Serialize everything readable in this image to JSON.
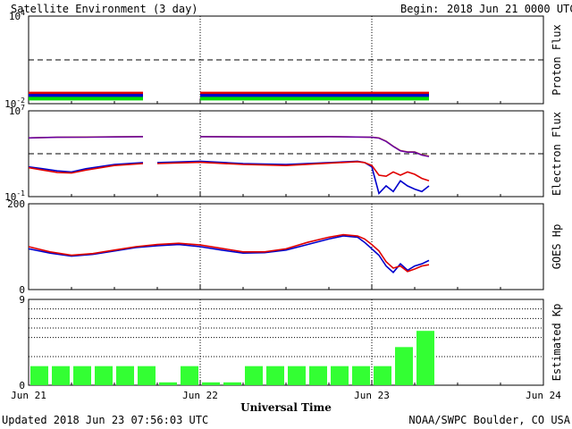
{
  "header": {
    "title": "Satellite Environment (3 day)",
    "begin_label": "Begin:",
    "begin_value": "2018 Jun 21 0000 UTC"
  },
  "footer": {
    "updated": "Updated 2018 Jun 23 07:56:03 UTC",
    "source": "NOAA/SWPC Boulder, CO USA"
  },
  "x_axis": {
    "title": "Universal Time",
    "ticks": [
      "Jun 21",
      "Jun 22",
      "Jun 23",
      "Jun 24"
    ],
    "range_hours": [
      0,
      72
    ],
    "data_end_hour": 56
  },
  "colors": {
    "red": "#e00000",
    "blue": "#0000cc",
    "green": "#00dd00",
    "orange": "#e8a020",
    "purple": "#6a00a0",
    "kp_bar": "#33ff33"
  },
  "chart_data": [
    {
      "type": "line",
      "ylabel": "Proton Flux",
      "yscale": "log",
      "ylim": [
        0.01,
        10000
      ],
      "yticks": [
        {
          "base": "10",
          "exp": "4"
        },
        {
          "base": "10",
          "exp": "-2"
        }
      ],
      "threshold": 10,
      "series": [
        {
          "color": "red",
          "x": [
            0,
            8,
            16,
            16.8,
            24,
            32,
            40,
            48,
            50,
            56
          ],
          "y": [
            0.05,
            0.05,
            0.05,
            null,
            0.05,
            0.05,
            0.05,
            0.05,
            0.05,
            0.05
          ]
        },
        {
          "color": "blue",
          "x": [
            0,
            8,
            16,
            16.8,
            24,
            32,
            40,
            48,
            50,
            56
          ],
          "y": [
            0.035,
            0.035,
            0.035,
            null,
            0.035,
            0.035,
            0.035,
            0.035,
            0.035,
            0.035
          ]
        },
        {
          "color": "green",
          "x": [
            0,
            8,
            16,
            16.8,
            24,
            32,
            40,
            48,
            50,
            56
          ],
          "y": [
            0.022,
            0.022,
            0.022,
            null,
            0.022,
            0.022,
            0.022,
            0.022,
            0.022,
            0.022
          ]
        }
      ]
    },
    {
      "type": "line",
      "ylabel": "Electron Flux",
      "yscale": "log",
      "ylim": [
        0.1,
        10000000
      ],
      "yticks": [
        {
          "base": "10",
          "exp": "7"
        },
        {
          "base": "10",
          "exp": "-1"
        }
      ],
      "threshold": 1000,
      "series": [
        {
          "color": "orange",
          "x": [
            0,
            4,
            8,
            12,
            16,
            16.8,
            24,
            30,
            36,
            42,
            48,
            49,
            50,
            51,
            52,
            53,
            54,
            55,
            56
          ],
          "y": [
            30000,
            35000,
            36000,
            38000,
            40000,
            null,
            40000,
            38000,
            38000,
            40000,
            35000,
            30000,
            15000,
            5000,
            2000,
            1500,
            1500,
            800,
            600
          ]
        },
        {
          "color": "purple",
          "x": [
            0,
            4,
            8,
            12,
            16,
            16.8,
            24,
            30,
            36,
            42,
            48,
            49,
            50,
            51,
            52,
            53,
            54,
            55,
            56
          ],
          "y": [
            30000,
            34000,
            35000,
            37000,
            39000,
            null,
            39000,
            37000,
            37000,
            39000,
            34000,
            29000,
            14000,
            4800,
            1900,
            1400,
            1400,
            750,
            550
          ]
        },
        {
          "color": "blue",
          "x": [
            0,
            2,
            4,
            6,
            8,
            12,
            16,
            16.8,
            18,
            24,
            30,
            36,
            42,
            46,
            47,
            48,
            49,
            50,
            51,
            52,
            53,
            54,
            55,
            56
          ],
          "y": [
            60,
            40,
            25,
            20,
            40,
            100,
            150,
            null,
            150,
            200,
            120,
            100,
            150,
            200,
            150,
            60,
            0.2,
            1,
            0.3,
            3,
            1,
            0.5,
            0.3,
            1
          ]
        },
        {
          "color": "red",
          "x": [
            0,
            2,
            4,
            6,
            8,
            12,
            16,
            16.8,
            18,
            24,
            30,
            36,
            42,
            46,
            47,
            48,
            49,
            50,
            51,
            52,
            53,
            54,
            55,
            56
          ],
          "y": [
            50,
            30,
            18,
            16,
            30,
            80,
            120,
            null,
            120,
            160,
            100,
            80,
            130,
            180,
            150,
            80,
            10,
            8,
            20,
            10,
            20,
            12,
            5,
            3
          ]
        }
      ]
    },
    {
      "type": "line",
      "ylabel": "GOES Hp",
      "yscale": "linear",
      "ylim": [
        0,
        200
      ],
      "yticks": [
        200,
        0
      ],
      "series": [
        {
          "color": "blue",
          "x": [
            0,
            3,
            6,
            9,
            12,
            15,
            18,
            21,
            24,
            27,
            30,
            33,
            36,
            39,
            42,
            44,
            46,
            47,
            48,
            49,
            50,
            51,
            52,
            53,
            54,
            55,
            56
          ],
          "y": [
            95,
            85,
            78,
            82,
            90,
            98,
            102,
            105,
            100,
            92,
            85,
            86,
            92,
            105,
            118,
            125,
            122,
            110,
            95,
            80,
            55,
            40,
            60,
            45,
            55,
            60,
            68
          ]
        },
        {
          "color": "red",
          "x": [
            0,
            3,
            6,
            9,
            12,
            15,
            18,
            21,
            24,
            27,
            30,
            33,
            36,
            39,
            42,
            44,
            46,
            47,
            48,
            49,
            50,
            51,
            52,
            53,
            54,
            55,
            56
          ],
          "y": [
            100,
            88,
            80,
            84,
            92,
            100,
            105,
            108,
            104,
            96,
            88,
            88,
            95,
            110,
            122,
            128,
            125,
            118,
            105,
            90,
            65,
            50,
            55,
            42,
            48,
            55,
            58
          ]
        }
      ]
    },
    {
      "type": "bar",
      "ylabel": "Estimated Kp",
      "ylim": [
        0,
        9
      ],
      "yticks": [
        9,
        0
      ],
      "gridlines": [
        3,
        5,
        6,
        7,
        8,
        9
      ],
      "bar_hours": 3,
      "values": [
        2,
        2,
        2,
        2,
        2,
        2,
        0.3,
        2,
        0.3,
        0.3,
        2,
        2,
        2,
        2,
        2,
        2,
        2,
        4,
        5.7
      ]
    }
  ]
}
